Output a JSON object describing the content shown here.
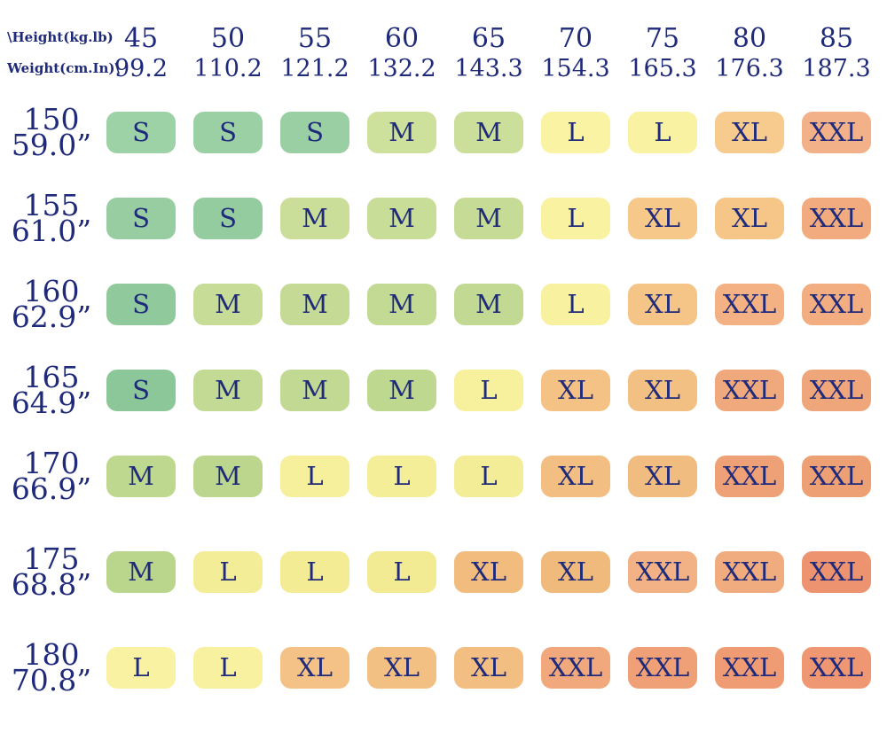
{
  "header": {
    "corner_line1": "\\Height(kg.lb)",
    "corner_line2": "Weight(cm.In)\\",
    "columns": [
      {
        "kg": "45",
        "lb": "99.2"
      },
      {
        "kg": "50",
        "lb": "110.2"
      },
      {
        "kg": "55",
        "lb": "121.2"
      },
      {
        "kg": "60",
        "lb": "132.2"
      },
      {
        "kg": "65",
        "lb": "143.3"
      },
      {
        "kg": "70",
        "lb": "154.3"
      },
      {
        "kg": "75",
        "lb": "165.3"
      },
      {
        "kg": "80",
        "lb": "176.3"
      },
      {
        "kg": "85",
        "lb": "187.3"
      }
    ]
  },
  "rows": [
    {
      "cm": "150",
      "inch": "59.0”",
      "cells": [
        {
          "size": "S",
          "color": "#9dd1a6"
        },
        {
          "size": "S",
          "color": "#9bd0a4"
        },
        {
          "size": "S",
          "color": "#99cfa2"
        },
        {
          "size": "M",
          "color": "#cde09c"
        },
        {
          "size": "M",
          "color": "#cbdf9a"
        },
        {
          "size": "L",
          "color": "#faf3a4"
        },
        {
          "size": "L",
          "color": "#f9f2a2"
        },
        {
          "size": "XL",
          "color": "#f7cb8d"
        },
        {
          "size": "XXL",
          "color": "#f3b189"
        }
      ]
    },
    {
      "cm": "155",
      "inch": "61.0”",
      "cells": [
        {
          "size": "S",
          "color": "#97cda1"
        },
        {
          "size": "S",
          "color": "#95cc9f"
        },
        {
          "size": "M",
          "color": "#cade99"
        },
        {
          "size": "M",
          "color": "#c8dd98"
        },
        {
          "size": "M",
          "color": "#c6dc96"
        },
        {
          "size": "L",
          "color": "#f9f2a1"
        },
        {
          "size": "XL",
          "color": "#f6c88a"
        },
        {
          "size": "XL",
          "color": "#f5c688"
        },
        {
          "size": "XXL",
          "color": "#f1ab7f"
        }
      ]
    },
    {
      "cm": "160",
      "inch": "62.9”",
      "cells": [
        {
          "size": "S",
          "color": "#90ca9c"
        },
        {
          "size": "M",
          "color": "#c7dc97"
        },
        {
          "size": "M",
          "color": "#c5db95"
        },
        {
          "size": "M",
          "color": "#c3da94"
        },
        {
          "size": "M",
          "color": "#c1d992"
        },
        {
          "size": "L",
          "color": "#f8f19f"
        },
        {
          "size": "XL",
          "color": "#f5c487"
        },
        {
          "size": "XXL",
          "color": "#f3b184"
        },
        {
          "size": "XXL",
          "color": "#f2ae81"
        }
      ]
    },
    {
      "cm": "165",
      "inch": "64.9”",
      "cells": [
        {
          "size": "S",
          "color": "#8bc798"
        },
        {
          "size": "M",
          "color": "#c3da94"
        },
        {
          "size": "M",
          "color": "#c1d992"
        },
        {
          "size": "M",
          "color": "#bfd890"
        },
        {
          "size": "L",
          "color": "#f7f09d"
        },
        {
          "size": "XL",
          "color": "#f4c285"
        },
        {
          "size": "XL",
          "color": "#f3c083"
        },
        {
          "size": "XXL",
          "color": "#f0a87d"
        },
        {
          "size": "XXL",
          "color": "#efa67b"
        }
      ]
    },
    {
      "cm": "170",
      "inch": "66.9”",
      "cells": [
        {
          "size": "M",
          "color": "#bed88f"
        },
        {
          "size": "M",
          "color": "#bcd68d"
        },
        {
          "size": "L",
          "color": "#f6ef9b"
        },
        {
          "size": "L",
          "color": "#f5ee99"
        },
        {
          "size": "L",
          "color": "#f4ed97"
        },
        {
          "size": "XL",
          "color": "#f2be81"
        },
        {
          "size": "XL",
          "color": "#f1bc7f"
        },
        {
          "size": "XXL",
          "color": "#eea176"
        },
        {
          "size": "XXL",
          "color": "#eda074"
        }
      ]
    },
    {
      "cm": "175",
      "inch": "68.8”",
      "cells": [
        {
          "size": "M",
          "color": "#bad58c"
        },
        {
          "size": "L",
          "color": "#f4ed97"
        },
        {
          "size": "L",
          "color": "#f3ec95"
        },
        {
          "size": "L",
          "color": "#f2eb93"
        },
        {
          "size": "XL",
          "color": "#f1bc7e"
        },
        {
          "size": "XL",
          "color": "#f0ba7c"
        },
        {
          "size": "XXL",
          "color": "#f2b285"
        },
        {
          "size": "XXL",
          "color": "#f0ac7f"
        },
        {
          "size": "XXL",
          "color": "#ee9370"
        }
      ]
    },
    {
      "cm": "180",
      "inch": "70.8”",
      "cells": [
        {
          "size": "L",
          "color": "#f9f2a2"
        },
        {
          "size": "L",
          "color": "#f8f1a0"
        },
        {
          "size": "XL",
          "color": "#f4c286"
        },
        {
          "size": "XL",
          "color": "#f3c084"
        },
        {
          "size": "XL",
          "color": "#f2be82"
        },
        {
          "size": "XXL",
          "color": "#f0a87c"
        },
        {
          "size": "XXL",
          "color": "#efa077"
        },
        {
          "size": "XXL",
          "color": "#ef9c74"
        },
        {
          "size": "XXL",
          "color": "#ee9772"
        }
      ]
    }
  ],
  "colors": {
    "text_navy": "#1f2a7a",
    "background": "#ffffff",
    "size_S": "#96cda0",
    "size_M": "#c8dd98",
    "size_L": "#f9f2a1",
    "size_XL": "#f5c587",
    "size_XXL": "#f2ae81",
    "size_XXL_hot": "#ee9471"
  },
  "chart_data": {
    "type": "table",
    "title": "",
    "corner_labels": [
      "\\Height(kg.lb)",
      "Weight(cm.In)\\"
    ],
    "columns_weight_kg": [
      45,
      50,
      55,
      60,
      65,
      70,
      75,
      80,
      85
    ],
    "columns_weight_lb": [
      99.2,
      110.2,
      121.2,
      132.2,
      143.3,
      154.3,
      165.3,
      176.3,
      187.3
    ],
    "rows_height_cm": [
      150,
      155,
      160,
      165,
      170,
      175,
      180
    ],
    "rows_height_in": [
      59.0,
      61.0,
      62.9,
      64.9,
      66.9,
      68.8,
      70.8
    ],
    "sizes_matrix": [
      [
        "S",
        "S",
        "S",
        "M",
        "M",
        "L",
        "L",
        "XL",
        "XXL"
      ],
      [
        "S",
        "S",
        "M",
        "M",
        "M",
        "L",
        "XL",
        "XL",
        "XXL"
      ],
      [
        "S",
        "M",
        "M",
        "M",
        "M",
        "L",
        "XL",
        "XXL",
        "XXL"
      ],
      [
        "S",
        "M",
        "M",
        "M",
        "L",
        "XL",
        "XL",
        "XXL",
        "XXL"
      ],
      [
        "M",
        "M",
        "L",
        "L",
        "L",
        "XL",
        "XL",
        "XXL",
        "XXL"
      ],
      [
        "M",
        "L",
        "L",
        "L",
        "XL",
        "XL",
        "XXL",
        "XXL",
        "XXL"
      ],
      [
        "L",
        "L",
        "XL",
        "XL",
        "XL",
        "XXL",
        "XXL",
        "XXL",
        "XXL"
      ]
    ],
    "legend": "cell color encodes size: green=S, light green=M, yellow=L, orange=XL, dark orange/salmon=XXL"
  }
}
